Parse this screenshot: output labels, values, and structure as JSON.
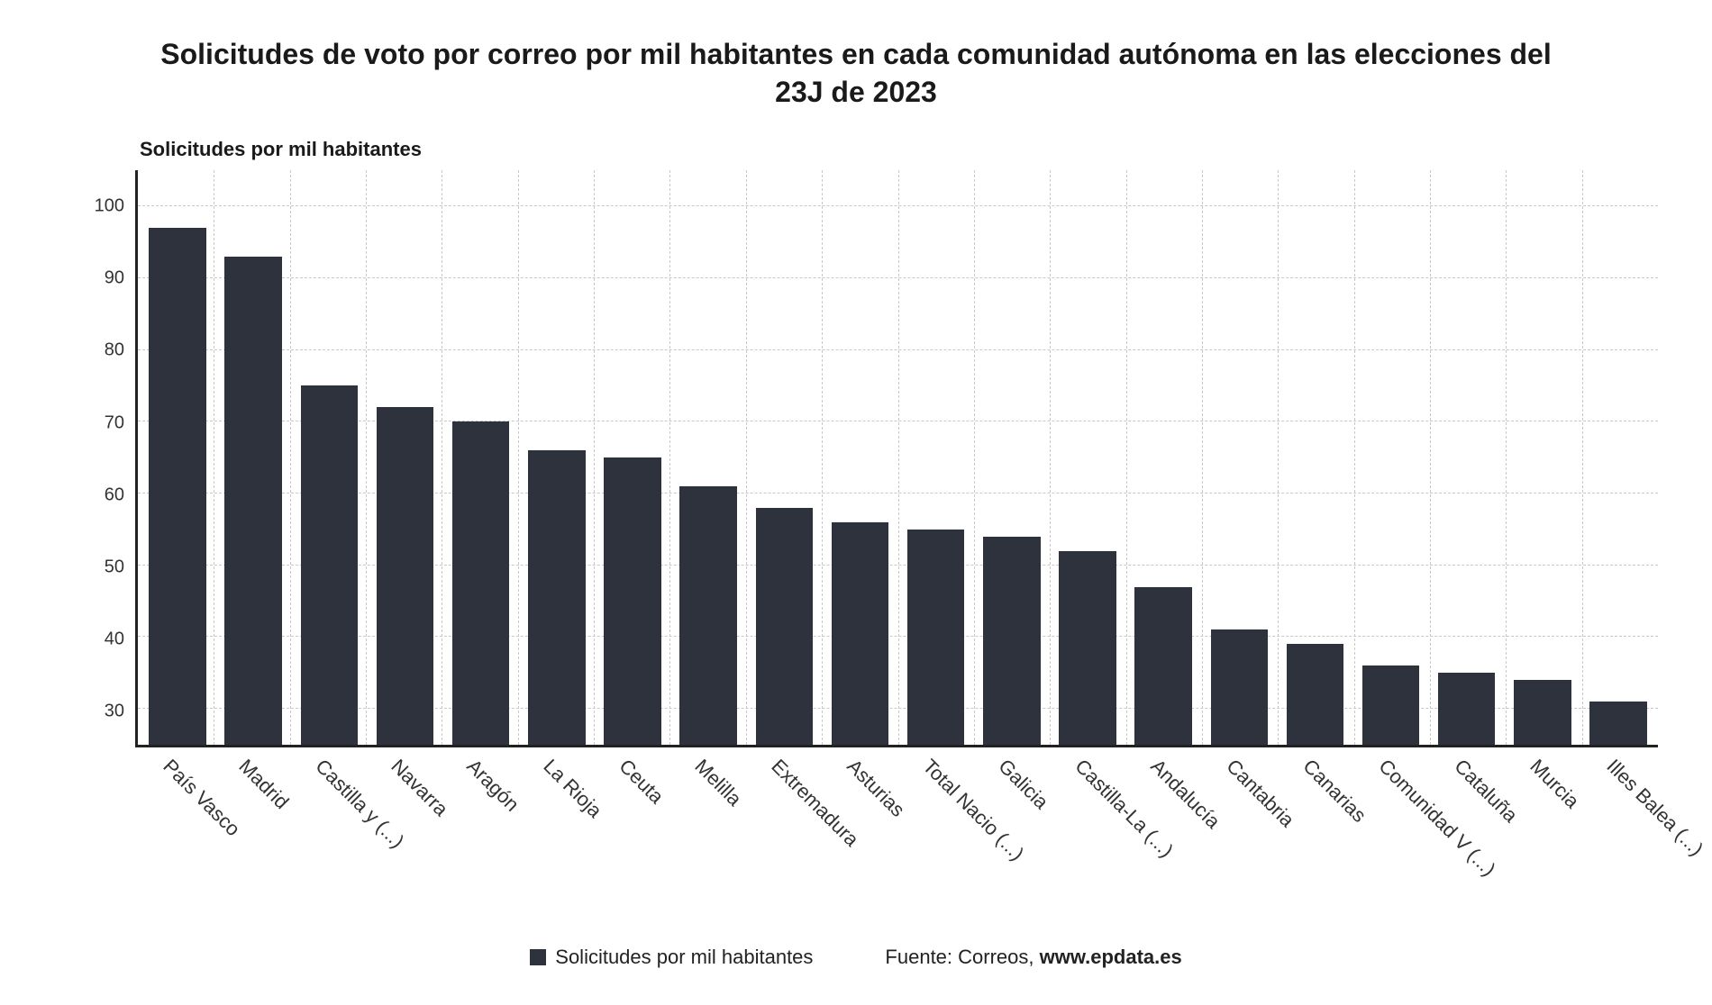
{
  "chart": {
    "type": "bar",
    "title": "Solicitudes de voto por correo por mil habitantes en cada comunidad autónoma en las elecciones del 23J de 2023",
    "title_fontsize": 32,
    "ylabel": "Solicitudes por mil habitantes",
    "ylabel_fontsize": 22,
    "categories": [
      "País Vasco",
      "Madrid",
      "Castilla y (...)",
      "Navarra",
      "Aragón",
      "La Rioja",
      "Ceuta",
      "Melilla",
      "Extremadura",
      "Asturias",
      "Total Nacio (...)",
      "Galicia",
      "Castilla-La (...)",
      "Andalucía",
      "Cantabria",
      "Canarias",
      "Comunidad V (...)",
      "Cataluña",
      "Murcia",
      "Illes Balea (...)"
    ],
    "values": [
      97,
      93,
      75,
      72,
      70,
      66,
      65,
      61,
      58,
      56,
      55,
      54,
      52,
      47,
      41,
      39,
      36,
      35,
      34,
      31
    ],
    "bar_color": "#2d323c",
    "background_color": "#ffffff",
    "grid_color": "#c8c8c8",
    "axis_color": "#222222",
    "ymin_visible": 25,
    "ymax": 105,
    "yticks": [
      30,
      40,
      50,
      60,
      70,
      80,
      90,
      100
    ],
    "tick_fontsize": 20,
    "xlabel_fontsize": 22,
    "xlabel_rotation": 45,
    "bar_width": 0.88,
    "legend": {
      "swatch_color": "#2d323c",
      "label": "Solicitudes por mil habitantes",
      "source_prefix": "Fuente: Correos, ",
      "source_bold": "www.epdata.es",
      "fontsize": 22
    }
  }
}
